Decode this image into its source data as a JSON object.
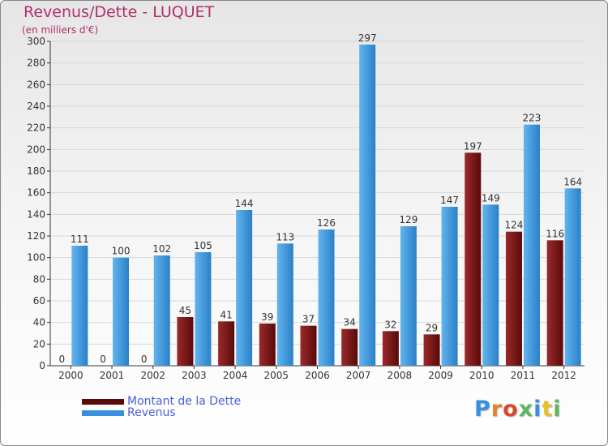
{
  "title": "Revenus/Dette - LUQUET",
  "subtitle": "(en milliers d'€)",
  "colors": {
    "dette_top": "#9a2a2a",
    "dette_bottom": "#5a0a0a",
    "revenus_top": "#62b4ee",
    "revenus_bottom": "#2a80c8",
    "legend_dette": "#5a0a0a",
    "legend_revenus": "#3a8ee0",
    "axis": "#333333",
    "grid": "#d8d8d8"
  },
  "legend": {
    "dette_label": "Montant de la Dette",
    "revenus_label": "Revenus"
  },
  "logo": {
    "text": "Proxiti",
    "letter_colors": [
      "#3a8ee0",
      "#e8802a",
      "#d64a2a",
      "#5cb85c",
      "#3a8ee0",
      "#e8c02a",
      "#5cb85c"
    ]
  },
  "chart_data": {
    "type": "bar",
    "title": "Revenus/Dette - LUQUET",
    "ylabel": "(en milliers d'€)",
    "xlabel": "",
    "categories": [
      "2000",
      "2001",
      "2002",
      "2003",
      "2004",
      "2005",
      "2006",
      "2007",
      "2008",
      "2009",
      "2010",
      "2011",
      "2012"
    ],
    "ylim": [
      0,
      300
    ],
    "yticks": [
      0,
      20,
      40,
      60,
      80,
      100,
      120,
      140,
      160,
      180,
      200,
      220,
      240,
      260,
      280,
      300
    ],
    "grid": true,
    "series": [
      {
        "name": "Montant de la Dette",
        "values": [
          0,
          0,
          0,
          45,
          41,
          39,
          37,
          34,
          32,
          29,
          197,
          124,
          116
        ]
      },
      {
        "name": "Revenus",
        "values": [
          111,
          100,
          102,
          105,
          144,
          113,
          126,
          297,
          129,
          147,
          149,
          223,
          164
        ]
      }
    ]
  }
}
